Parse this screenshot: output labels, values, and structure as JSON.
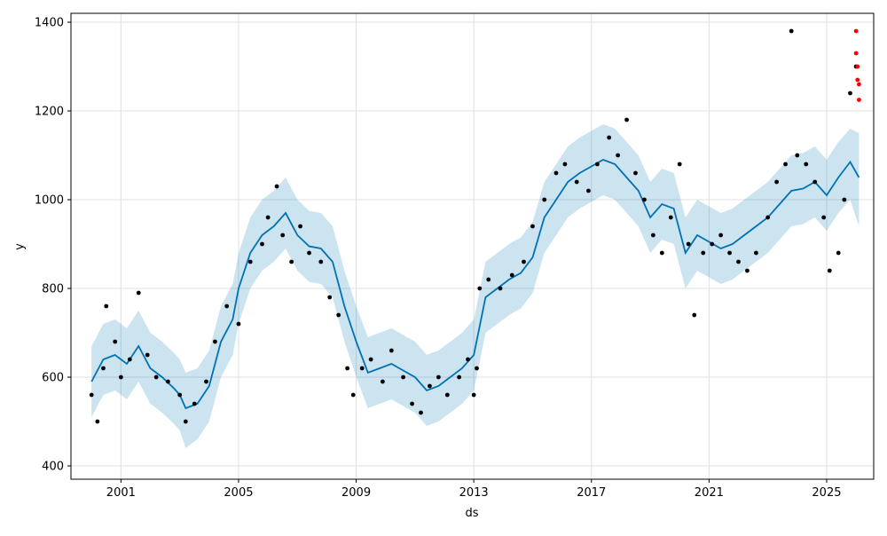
{
  "chart_data": {
    "type": "line",
    "xlabel": "ds",
    "ylabel": "y",
    "xlim": [
      1999.3,
      2026.6
    ],
    "ylim": [
      370,
      1420
    ],
    "x_ticks": [
      2001,
      2005,
      2009,
      2013,
      2017,
      2021,
      2025
    ],
    "x_tick_labels": [
      "2001",
      "2005",
      "2009",
      "2013",
      "2017",
      "2021",
      "2025"
    ],
    "y_ticks": [
      400,
      600,
      800,
      1000,
      1200,
      1400
    ],
    "y_tick_labels": [
      "400",
      "600",
      "800",
      "1000",
      "1200",
      "1400"
    ],
    "grid": true,
    "colors": {
      "observed": "#000000",
      "outliers": "#ff0000",
      "forecast_line": "#0072B2",
      "interval_fill": "#0072B2",
      "grid": "#e0e0e0"
    },
    "forecast": {
      "x": [
        2000.0,
        2000.4,
        2000.8,
        2001.2,
        2001.6,
        2002.0,
        2002.4,
        2002.8,
        2003.0,
        2003.2,
        2003.6,
        2004.0,
        2004.4,
        2004.8,
        2005.0,
        2005.4,
        2005.8,
        2006.2,
        2006.6,
        2007.0,
        2007.4,
        2007.8,
        2008.2,
        2008.6,
        2009.0,
        2009.4,
        2009.8,
        2010.2,
        2010.6,
        2011.0,
        2011.4,
        2011.8,
        2012.2,
        2012.6,
        2013.0,
        2013.4,
        2013.8,
        2014.2,
        2014.6,
        2015.0,
        2015.4,
        2015.8,
        2016.2,
        2016.6,
        2017.0,
        2017.4,
        2017.8,
        2018.2,
        2018.6,
        2019.0,
        2019.4,
        2019.8,
        2020.2,
        2020.6,
        2021.0,
        2021.4,
        2021.8,
        2022.2,
        2022.6,
        2023.0,
        2023.4,
        2023.8,
        2024.2,
        2024.6,
        2025.0,
        2025.4,
        2025.8,
        2026.1
      ],
      "yhat": [
        590,
        640,
        650,
        630,
        670,
        620,
        600,
        575,
        560,
        530,
        540,
        580,
        680,
        730,
        800,
        880,
        920,
        940,
        970,
        920,
        895,
        890,
        860,
        760,
        680,
        610,
        620,
        630,
        615,
        600,
        570,
        580,
        600,
        620,
        650,
        780,
        800,
        820,
        835,
        870,
        960,
        1000,
        1040,
        1060,
        1075,
        1090,
        1080,
        1050,
        1020,
        960,
        990,
        980,
        880,
        920,
        905,
        890,
        900,
        920,
        940,
        960,
        990,
        1020,
        1025,
        1040,
        1010,
        1050,
        1085,
        1050
      ],
      "yhat_lower": [
        510,
        560,
        570,
        550,
        590,
        540,
        520,
        495,
        480,
        440,
        460,
        500,
        600,
        650,
        720,
        800,
        840,
        860,
        890,
        840,
        815,
        810,
        780,
        680,
        600,
        530,
        540,
        550,
        535,
        520,
        490,
        500,
        520,
        540,
        570,
        700,
        720,
        740,
        755,
        790,
        880,
        920,
        960,
        980,
        995,
        1010,
        1000,
        970,
        940,
        880,
        910,
        900,
        800,
        840,
        825,
        810,
        820,
        840,
        860,
        880,
        910,
        940,
        945,
        960,
        930,
        970,
        1000,
        940
      ],
      "yhat_upper": [
        670,
        720,
        730,
        710,
        750,
        700,
        680,
        655,
        640,
        610,
        620,
        660,
        760,
        810,
        880,
        960,
        1000,
        1020,
        1050,
        1000,
        975,
        970,
        940,
        840,
        760,
        690,
        700,
        710,
        695,
        680,
        650,
        660,
        680,
        700,
        730,
        860,
        880,
        900,
        915,
        950,
        1040,
        1080,
        1120,
        1140,
        1155,
        1170,
        1160,
        1130,
        1100,
        1040,
        1070,
        1060,
        960,
        1000,
        985,
        970,
        980,
        1000,
        1020,
        1040,
        1070,
        1100,
        1105,
        1120,
        1090,
        1130,
        1160,
        1150
      ]
    },
    "observed": {
      "x": [
        2000.0,
        2000.2,
        2000.4,
        2000.5,
        2000.8,
        2001.0,
        2001.3,
        2001.6,
        2001.9,
        2002.2,
        2002.6,
        2003.0,
        2003.2,
        2003.5,
        2003.9,
        2004.2,
        2004.6,
        2005.0,
        2005.4,
        2005.8,
        2006.0,
        2006.3,
        2006.5,
        2006.8,
        2007.1,
        2007.4,
        2007.8,
        2008.1,
        2008.4,
        2008.7,
        2008.9,
        2009.2,
        2009.5,
        2009.9,
        2010.2,
        2010.6,
        2010.9,
        2011.2,
        2011.5,
        2011.8,
        2012.1,
        2012.5,
        2012.8,
        2013.0,
        2013.1,
        2013.2,
        2013.5,
        2013.9,
        2014.3,
        2014.7,
        2015.0,
        2015.4,
        2015.8,
        2016.1,
        2016.5,
        2016.9,
        2017.2,
        2017.6,
        2017.9,
        2018.2,
        2018.5,
        2018.8,
        2019.1,
        2019.4,
        2019.7,
        2020.0,
        2020.3,
        2020.5,
        2020.8,
        2021.1,
        2021.4,
        2021.7,
        2022.0,
        2022.3,
        2022.6,
        2023.0,
        2023.3,
        2023.6,
        2023.8,
        2024.0,
        2024.3,
        2024.6,
        2024.9,
        2025.1,
        2025.4,
        2025.6,
        2025.8,
        2026.0
      ],
      "y": [
        560,
        500,
        620,
        760,
        680,
        600,
        640,
        790,
        650,
        600,
        590,
        560,
        500,
        540,
        590,
        680,
        760,
        720,
        860,
        900,
        960,
        1030,
        920,
        860,
        940,
        880,
        860,
        780,
        740,
        620,
        560,
        620,
        640,
        590,
        660,
        600,
        540,
        520,
        580,
        600,
        560,
        600,
        640,
        560,
        620,
        800,
        820,
        800,
        830,
        860,
        940,
        1000,
        1060,
        1080,
        1040,
        1020,
        1080,
        1140,
        1100,
        1180,
        1060,
        1000,
        920,
        880,
        960,
        1080,
        900,
        740,
        880,
        900,
        920,
        880,
        860,
        840,
        880,
        960,
        1040,
        1080,
        1380,
        1100,
        1080,
        1040,
        960,
        840,
        880,
        1000,
        1240,
        1300
      ],
      "outliers_x": [
        2026.0,
        2026.0,
        2026.05,
        2026.05,
        2026.1,
        2026.1
      ],
      "outliers_y": [
        1380,
        1330,
        1300,
        1270,
        1260,
        1225
      ]
    }
  }
}
